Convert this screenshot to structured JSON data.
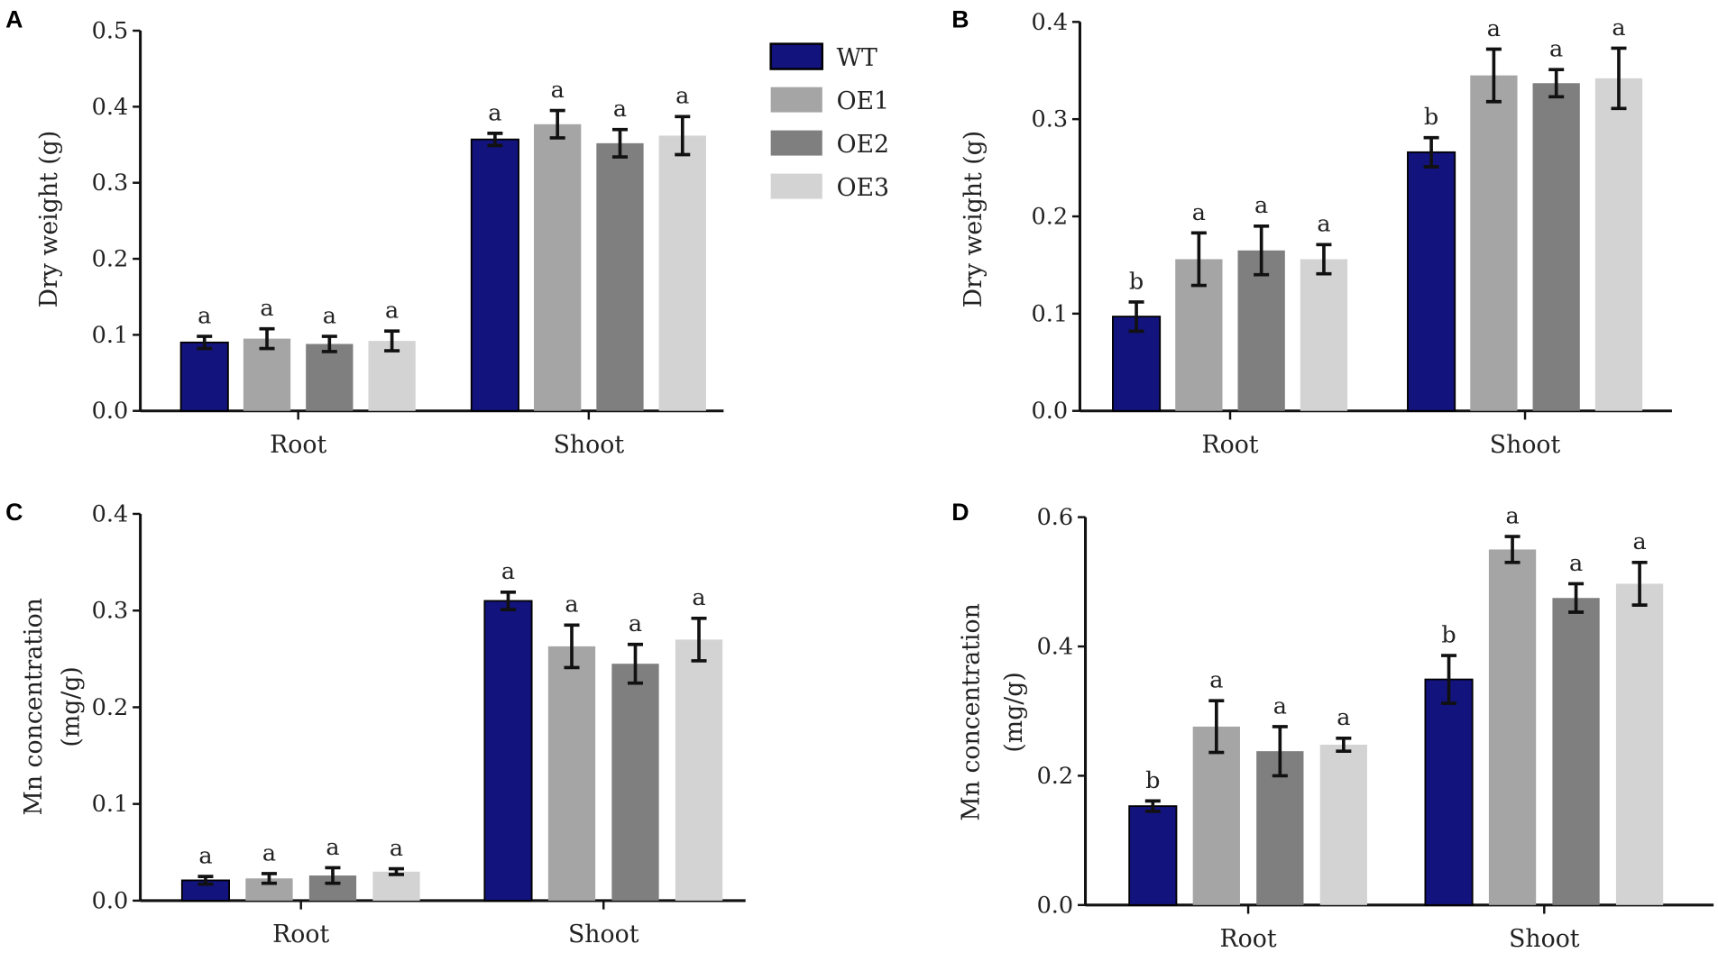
{
  "series": [
    "WT",
    "OE1",
    "OE2",
    "OE3"
  ],
  "colors": {
    "WT": "#13137d",
    "OE1": "#a5a5a5",
    "OE2": "#7f7f7f",
    "OE3": "#d3d3d3"
  },
  "chart_data": [
    {
      "type": "bar",
      "panel": "A",
      "ylabel": [
        "Dry weight (g)"
      ],
      "categories": [
        "Root",
        "Shoot"
      ],
      "ylim": [
        0,
        0.5
      ],
      "yticks": [
        "0.0",
        "0.1",
        "0.2",
        "0.3",
        "0.4",
        "0.5"
      ],
      "legend": "top-right",
      "series": [
        {
          "name": "WT",
          "values": [
            0.09,
            0.357
          ],
          "errors": [
            0.008,
            0.008
          ],
          "letters": [
            "a",
            "a"
          ]
        },
        {
          "name": "OE1",
          "values": [
            0.095,
            0.377
          ],
          "errors": [
            0.013,
            0.018
          ],
          "letters": [
            "a",
            "a"
          ]
        },
        {
          "name": "OE2",
          "values": [
            0.088,
            0.352
          ],
          "errors": [
            0.01,
            0.018
          ],
          "letters": [
            "a",
            "a"
          ]
        },
        {
          "name": "OE3",
          "values": [
            0.092,
            0.362
          ],
          "errors": [
            0.013,
            0.025
          ],
          "letters": [
            "a",
            "a"
          ]
        }
      ]
    },
    {
      "type": "bar",
      "panel": "B",
      "ylabel": [
        "Dry weight (g)"
      ],
      "categories": [
        "Root",
        "Shoot"
      ],
      "ylim": [
        0,
        0.4
      ],
      "yticks": [
        "0.0",
        "0.1",
        "0.2",
        "0.3",
        "0.4"
      ],
      "series": [
        {
          "name": "WT",
          "values": [
            0.097,
            0.266
          ],
          "errors": [
            0.015,
            0.015
          ],
          "letters": [
            "b",
            "b"
          ]
        },
        {
          "name": "OE1",
          "values": [
            0.156,
            0.345
          ],
          "errors": [
            0.027,
            0.027
          ],
          "letters": [
            "a",
            "a"
          ]
        },
        {
          "name": "OE2",
          "values": [
            0.165,
            0.337
          ],
          "errors": [
            0.025,
            0.014
          ],
          "letters": [
            "a",
            "a"
          ]
        },
        {
          "name": "OE3",
          "values": [
            0.156,
            0.342
          ],
          "errors": [
            0.015,
            0.031
          ],
          "letters": [
            "a",
            "a"
          ]
        }
      ]
    },
    {
      "type": "bar",
      "panel": "C",
      "ylabel": [
        "Mn concentration",
        "(mg/g)"
      ],
      "categories": [
        "Root",
        "Shoot"
      ],
      "ylim": [
        0,
        0.4
      ],
      "yticks": [
        "0.0",
        "0.1",
        "0.2",
        "0.3",
        "0.4"
      ],
      "series": [
        {
          "name": "WT",
          "values": [
            0.021,
            0.31
          ],
          "errors": [
            0.004,
            0.009
          ],
          "letters": [
            "a",
            "a"
          ]
        },
        {
          "name": "OE1",
          "values": [
            0.023,
            0.263
          ],
          "errors": [
            0.005,
            0.022
          ],
          "letters": [
            "a",
            "a"
          ]
        },
        {
          "name": "OE2",
          "values": [
            0.026,
            0.245
          ],
          "errors": [
            0.008,
            0.02
          ],
          "letters": [
            "a",
            "a"
          ]
        },
        {
          "name": "OE3",
          "values": [
            0.03,
            0.27
          ],
          "errors": [
            0.003,
            0.022
          ],
          "letters": [
            "a",
            "a"
          ]
        }
      ]
    },
    {
      "type": "bar",
      "panel": "D",
      "ylabel": [
        "Mn concentration",
        "(mg/g)"
      ],
      "categories": [
        "Root",
        "Shoot"
      ],
      "ylim": [
        0,
        0.6
      ],
      "yticks": [
        "0.0",
        "0.2",
        "0.4",
        "0.6"
      ],
      "series": [
        {
          "name": "WT",
          "values": [
            0.153,
            0.349
          ],
          "errors": [
            0.008,
            0.037
          ],
          "letters": [
            "b",
            "b"
          ]
        },
        {
          "name": "OE1",
          "values": [
            0.276,
            0.55
          ],
          "errors": [
            0.04,
            0.02
          ],
          "letters": [
            "a",
            "a"
          ]
        },
        {
          "name": "OE2",
          "values": [
            0.238,
            0.475
          ],
          "errors": [
            0.038,
            0.022
          ],
          "letters": [
            "a",
            "a"
          ]
        },
        {
          "name": "OE3",
          "values": [
            0.248,
            0.497
          ],
          "errors": [
            0.01,
            0.033
          ],
          "letters": [
            "a",
            "a"
          ]
        }
      ]
    }
  ]
}
